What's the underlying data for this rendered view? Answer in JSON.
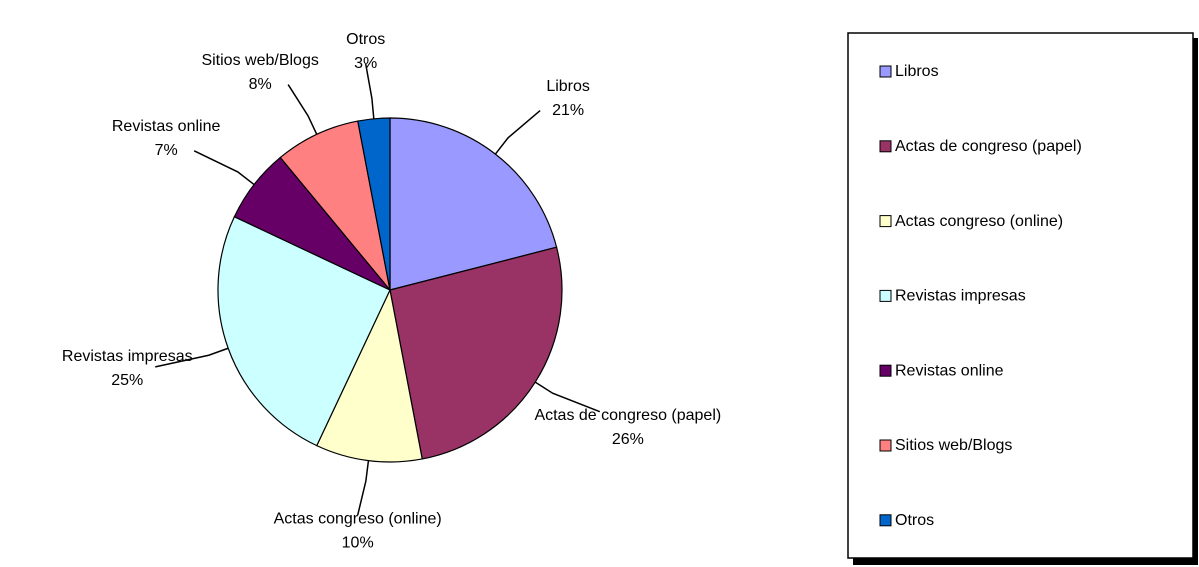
{
  "chart_data": {
    "type": "pie",
    "categories": [
      "Libros",
      "Actas de congreso (papel)",
      "Actas congreso (online)",
      "Revistas impresas",
      "Revistas online",
      "Sitios web/Blogs",
      "Otros"
    ],
    "values": [
      21,
      26,
      10,
      25,
      7,
      8,
      3
    ],
    "value_labels": [
      "21%",
      "26%",
      "10%",
      "25%",
      "7%",
      "8%",
      "3%"
    ],
    "colors": [
      "#9999ff",
      "#993366",
      "#ffffcc",
      "#ccffff",
      "#660066",
      "#ff8080",
      "#0066cc"
    ],
    "legend": "right"
  }
}
